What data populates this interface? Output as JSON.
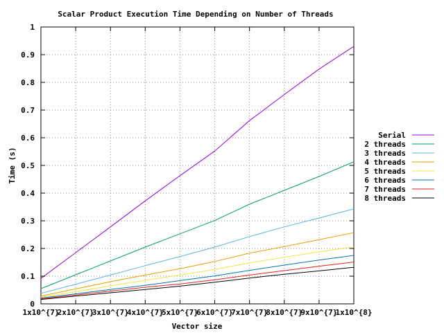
{
  "chart_data": {
    "type": "line",
    "title": "Scalar Product Execution Time Depending on Number of Threads",
    "xlabel": "Vector size",
    "ylabel": "Time (s)",
    "xlim": [
      10000000,
      100000000
    ],
    "ylim": [
      0,
      1
    ],
    "grid": true,
    "legend_position": "right",
    "x": [
      10000000,
      20000000,
      30000000,
      40000000,
      50000000,
      60000000,
      70000000,
      80000000,
      90000000,
      100000000
    ],
    "x_tick_labels": [
      "1x10^{7}",
      "2x10^{7}",
      "3x10^{7}",
      "4x10^{7}",
      "5x10^{7}",
      "6x10^{7}",
      "7x10^{7}",
      "8x10^{7}",
      "9x10^{7}",
      "1x10^{8}"
    ],
    "y_ticks": [
      0,
      0.1,
      0.2,
      0.3,
      0.4,
      0.5,
      0.6,
      0.7,
      0.8,
      0.9,
      1
    ],
    "y_tick_labels": [
      "0",
      "0.1",
      "0.2",
      "0.3",
      "0.4",
      "0.5",
      "0.6",
      "0.7",
      "0.8",
      "0.9",
      "1"
    ],
    "series": [
      {
        "name": "Serial",
        "color": "#9400d3",
        "values": [
          0.092,
          0.185,
          0.278,
          0.372,
          0.463,
          0.552,
          0.662,
          0.756,
          0.848,
          0.93
        ]
      },
      {
        "name": "2 threads",
        "color": "#009e73",
        "values": [
          0.055,
          0.105,
          0.155,
          0.205,
          0.253,
          0.301,
          0.36,
          0.41,
          0.46,
          0.513
        ]
      },
      {
        "name": "3 threads",
        "color": "#56b4e9",
        "values": [
          0.038,
          0.071,
          0.104,
          0.138,
          0.171,
          0.205,
          0.243,
          0.278,
          0.31,
          0.343
        ]
      },
      {
        "name": "4 threads",
        "color": "#e69f00",
        "values": [
          0.028,
          0.054,
          0.08,
          0.104,
          0.127,
          0.153,
          0.183,
          0.207,
          0.232,
          0.257
        ]
      },
      {
        "name": "5 threads",
        "color": "#f0e442",
        "values": [
          0.024,
          0.044,
          0.065,
          0.085,
          0.104,
          0.124,
          0.148,
          0.168,
          0.188,
          0.206
        ]
      },
      {
        "name": "6 threads",
        "color": "#0072b2",
        "values": [
          0.021,
          0.036,
          0.052,
          0.067,
          0.084,
          0.101,
          0.121,
          0.14,
          0.158,
          0.175
        ]
      },
      {
        "name": "7 threads",
        "color": "#e51e10",
        "values": [
          0.018,
          0.032,
          0.046,
          0.06,
          0.072,
          0.087,
          0.104,
          0.12,
          0.136,
          0.151
        ]
      },
      {
        "name": "8 threads",
        "color": "#000000",
        "values": [
          0.016,
          0.028,
          0.04,
          0.052,
          0.064,
          0.078,
          0.093,
          0.107,
          0.119,
          0.132
        ]
      }
    ]
  }
}
